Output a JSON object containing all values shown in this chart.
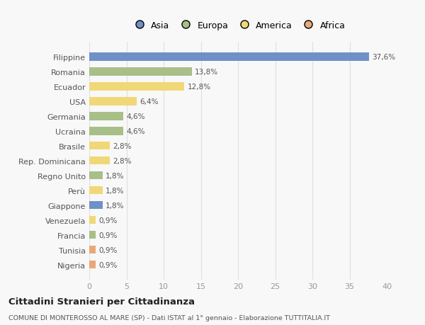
{
  "categories": [
    "Filippine",
    "Romania",
    "Ecuador",
    "USA",
    "Germania",
    "Ucraina",
    "Brasile",
    "Rep. Dominicana",
    "Regno Unito",
    "Perù",
    "Giappone",
    "Venezuela",
    "Francia",
    "Tunisia",
    "Nigeria"
  ],
  "values": [
    37.6,
    13.8,
    12.8,
    6.4,
    4.6,
    4.6,
    2.8,
    2.8,
    1.8,
    1.8,
    1.8,
    0.9,
    0.9,
    0.9,
    0.9
  ],
  "labels": [
    "37,6%",
    "13,8%",
    "12,8%",
    "6,4%",
    "4,6%",
    "4,6%",
    "2,8%",
    "2,8%",
    "1,8%",
    "1,8%",
    "1,8%",
    "0,9%",
    "0,9%",
    "0,9%",
    "0,9%"
  ],
  "continents": [
    "Asia",
    "Europa",
    "America",
    "America",
    "Europa",
    "Europa",
    "America",
    "America",
    "Europa",
    "America",
    "Asia",
    "America",
    "Europa",
    "Africa",
    "Africa"
  ],
  "colors": {
    "Asia": "#7090c8",
    "Europa": "#a8bf88",
    "America": "#f0d878",
    "Africa": "#e8a878"
  },
  "title": "Cittadini Stranieri per Cittadinanza",
  "subtitle": "COMUNE DI MONTEROSSO AL MARE (SP) - Dati ISTAT al 1° gennaio - Elaborazione TUTTITALIA.IT",
  "xlim": [
    0,
    40
  ],
  "xticks": [
    0,
    5,
    10,
    15,
    20,
    25,
    30,
    35,
    40
  ],
  "background_color": "#f8f8f8",
  "grid_color": "#e0e0e0"
}
